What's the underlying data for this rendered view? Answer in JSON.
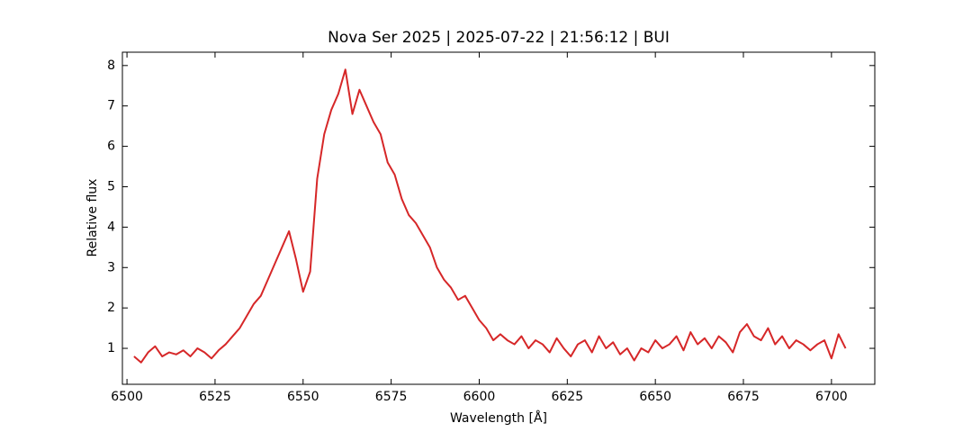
{
  "chart_data": {
    "type": "line",
    "title": "Nova Ser 2025 | 2025-07-22 | 21:56:12 | BUI",
    "x_label": "Wavelength [Å]",
    "y_label": "Relative flux",
    "xlim": [
      6498.7,
      6712.3
    ],
    "ylim": [
      0.11,
      8.33
    ],
    "xticks": [
      6500,
      6525,
      6550,
      6575,
      6600,
      6625,
      6650,
      6675,
      6700
    ],
    "yticks": [
      1,
      2,
      3,
      4,
      5,
      6,
      7,
      8
    ],
    "grid": false,
    "series": [
      {
        "color": "#d62728",
        "x": [
          6502,
          6504,
          6506,
          6508,
          6510,
          6512,
          6514,
          6516,
          6518,
          6520,
          6522,
          6524,
          6526,
          6528,
          6530,
          6532,
          6534,
          6536,
          6538,
          6540,
          6542,
          6544,
          6546,
          6548,
          6550,
          6552,
          6554,
          6556,
          6558,
          6560,
          6562,
          6564,
          6566,
          6568,
          6570,
          6572,
          6574,
          6576,
          6578,
          6580,
          6582,
          6584,
          6586,
          6588,
          6590,
          6592,
          6594,
          6596,
          6598,
          6600,
          6602,
          6604,
          6606,
          6608,
          6610,
          6612,
          6614,
          6616,
          6618,
          6620,
          6622,
          6624,
          6626,
          6628,
          6630,
          6632,
          6634,
          6636,
          6638,
          6640,
          6642,
          6644,
          6646,
          6648,
          6650,
          6652,
          6654,
          6656,
          6658,
          6660,
          6662,
          6664,
          6666,
          6668,
          6670,
          6672,
          6674,
          6676,
          6678,
          6680,
          6682,
          6684,
          6686,
          6688,
          6690,
          6692,
          6694,
          6696,
          6698,
          6700,
          6702,
          6704
        ],
        "values": [
          0.8,
          0.65,
          0.9,
          1.05,
          0.8,
          0.9,
          0.85,
          0.95,
          0.8,
          1.0,
          0.9,
          0.75,
          0.95,
          1.1,
          1.3,
          1.5,
          1.8,
          2.1,
          2.3,
          2.7,
          3.1,
          3.5,
          3.9,
          3.2,
          2.4,
          2.9,
          5.2,
          6.3,
          6.9,
          7.3,
          7.9,
          6.8,
          7.4,
          7.0,
          6.6,
          6.3,
          5.6,
          5.3,
          4.7,
          4.3,
          4.1,
          3.8,
          3.5,
          3.0,
          2.7,
          2.5,
          2.2,
          2.3,
          2.0,
          1.7,
          1.5,
          1.2,
          1.35,
          1.2,
          1.1,
          1.3,
          1.0,
          1.2,
          1.1,
          0.9,
          1.25,
          1.0,
          0.8,
          1.1,
          1.2,
          0.9,
          1.3,
          1.0,
          1.15,
          0.85,
          1.0,
          0.7,
          1.0,
          0.9,
          1.2,
          1.0,
          1.1,
          1.3,
          0.95,
          1.4,
          1.1,
          1.25,
          1.0,
          1.3,
          1.15,
          0.9,
          1.4,
          1.6,
          1.3,
          1.2,
          1.5,
          1.1,
          1.3,
          1.0,
          1.2,
          1.1,
          0.95,
          1.1,
          1.2,
          0.75,
          1.35,
          1.0
        ]
      }
    ]
  }
}
